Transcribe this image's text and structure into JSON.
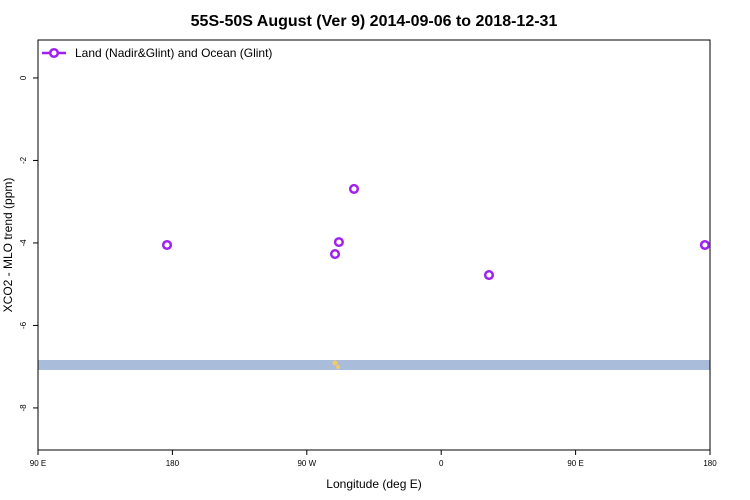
{
  "chart_data": {
    "type": "scatter",
    "title": "55S-50S August (Ver 9)   2014-09-06 to 2018-12-31",
    "x_label": "Longitude (deg E)",
    "y_label": "XCO2 - MLO trend (ppm)",
    "series": [
      {
        "name": "Land (Nadir&Glint) and Ocean (Glint)",
        "color": "#a020f0",
        "x": [
          176.4,
          301.6,
          291.5,
          288.9,
          392.0,
          536.6
        ],
        "values": [
          -4.05,
          -2.69,
          -3.98,
          -4.27,
          -4.78,
          -4.05
        ]
      }
    ],
    "xlim": [
      90,
      540
    ],
    "xticks": [
      {
        "value": 90,
        "label": "90 E"
      },
      180,
      {
        "value": 270,
        "label": "90 W"
      },
      {
        "value": 360,
        "label": "0"
      },
      {
        "value": 450,
        "label": "90 E"
      },
      {
        "value": 540,
        "label": "180"
      }
    ],
    "ylim": [
      -9.02,
      0.92
    ],
    "yticks": [
      0,
      -2,
      -4,
      -6,
      -8
    ],
    "legend": "top-left"
  }
}
